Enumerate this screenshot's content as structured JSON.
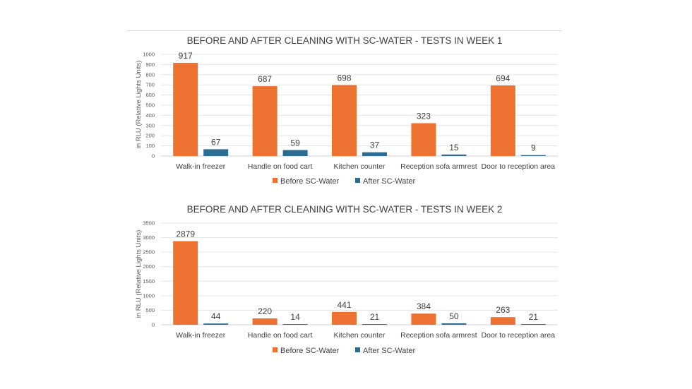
{
  "colors": {
    "before": "#ED7232",
    "after": "#2A6C93"
  },
  "chart_data": [
    {
      "type": "bar",
      "title": "BEFORE AND AFTER CLEANING WITH SC-WATER - TESTS IN WEEK 1",
      "xlabel": "",
      "ylabel": "in RLU (Relative Lights Units)",
      "ylim": [
        0,
        1000
      ],
      "yticks": [
        "0",
        "100",
        "200",
        "300",
        "400",
        "500",
        "600",
        "700",
        "800",
        "900",
        "1000"
      ],
      "yticks_values": [
        0,
        100,
        200,
        300,
        400,
        500,
        600,
        700,
        800,
        900,
        1000
      ],
      "categories": [
        "Walk-in freezer",
        "Handle on food cart",
        "Kitchen counter",
        "Reception sofa armrest",
        "Door to reception area"
      ],
      "series": [
        {
          "name": "Before SC-Water",
          "values": [
            917,
            687,
            698,
            323,
            694
          ],
          "labels": [
            "917",
            "687",
            "698",
            "323",
            "694"
          ]
        },
        {
          "name": "After SC-Water",
          "values": [
            67,
            59,
            37,
            15,
            9
          ],
          "labels": [
            "67",
            "59",
            "37",
            "15",
            "9"
          ]
        }
      ],
      "grid": true,
      "legend": "bottom"
    },
    {
      "type": "bar",
      "title": "BEFORE AND AFTER CLEANING WITH SC-WATER - TESTS IN WEEK 2",
      "xlabel": "",
      "ylabel": "in RLU (Relative Lights Units)",
      "ylim": [
        0,
        3500
      ],
      "yticks": [
        "0",
        "500",
        "1000",
        "1500",
        "2000",
        "2500",
        "3000",
        "3500"
      ],
      "yticks_values": [
        0,
        500,
        1000,
        1500,
        2000,
        2500,
        3000,
        3500
      ],
      "categories": [
        "Walk-in freezer",
        "Handle on food cart",
        "Kitchen counter",
        "Reception sofa armrest",
        "Door to reception area"
      ],
      "series": [
        {
          "name": "Before SC-Water",
          "values": [
            2879,
            220,
            441,
            384,
            263
          ],
          "labels": [
            "2879",
            "220",
            "441",
            "384",
            "263"
          ]
        },
        {
          "name": "After SC-Water",
          "values": [
            44,
            14,
            21,
            50,
            21
          ],
          "labels": [
            "44",
            "14",
            "21",
            "50",
            "21"
          ]
        }
      ],
      "grid": true,
      "legend": "bottom"
    }
  ]
}
